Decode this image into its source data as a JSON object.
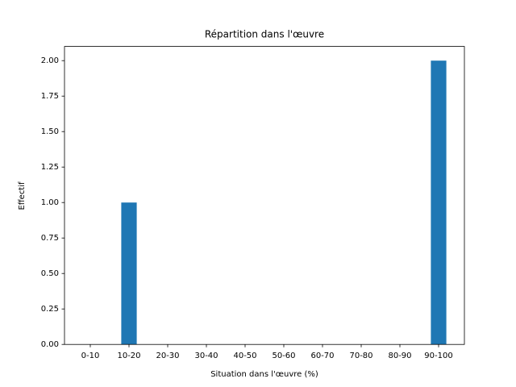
{
  "chart_data": {
    "type": "bar",
    "title": "Répartition dans l'œuvre",
    "x_label": "Situation dans l'œuvre (%)",
    "y_label": "Effectif",
    "categories": [
      "0-10",
      "10-20",
      "20-30",
      "30-40",
      "40-50",
      "50-60",
      "60-70",
      "70-80",
      "80-90",
      "90-100"
    ],
    "values": [
      0,
      1,
      0,
      0,
      0,
      0,
      0,
      0,
      0,
      2
    ],
    "color": "#1f77b4",
    "ylim": [
      0,
      2.1
    ],
    "yticks": [
      {
        "value": 0,
        "label": "0.00"
      },
      {
        "value": 0.25,
        "label": "0.25"
      },
      {
        "value": 0.5,
        "label": "0.50"
      },
      {
        "value": 0.75,
        "label": "0.75"
      },
      {
        "value": 1,
        "label": "1.00"
      },
      {
        "value": 1.25,
        "label": "1.25"
      },
      {
        "value": 1.5,
        "label": "1.50"
      },
      {
        "value": 1.75,
        "label": "1.75"
      },
      {
        "value": 2,
        "label": "2.00"
      }
    ],
    "grid": false
  }
}
